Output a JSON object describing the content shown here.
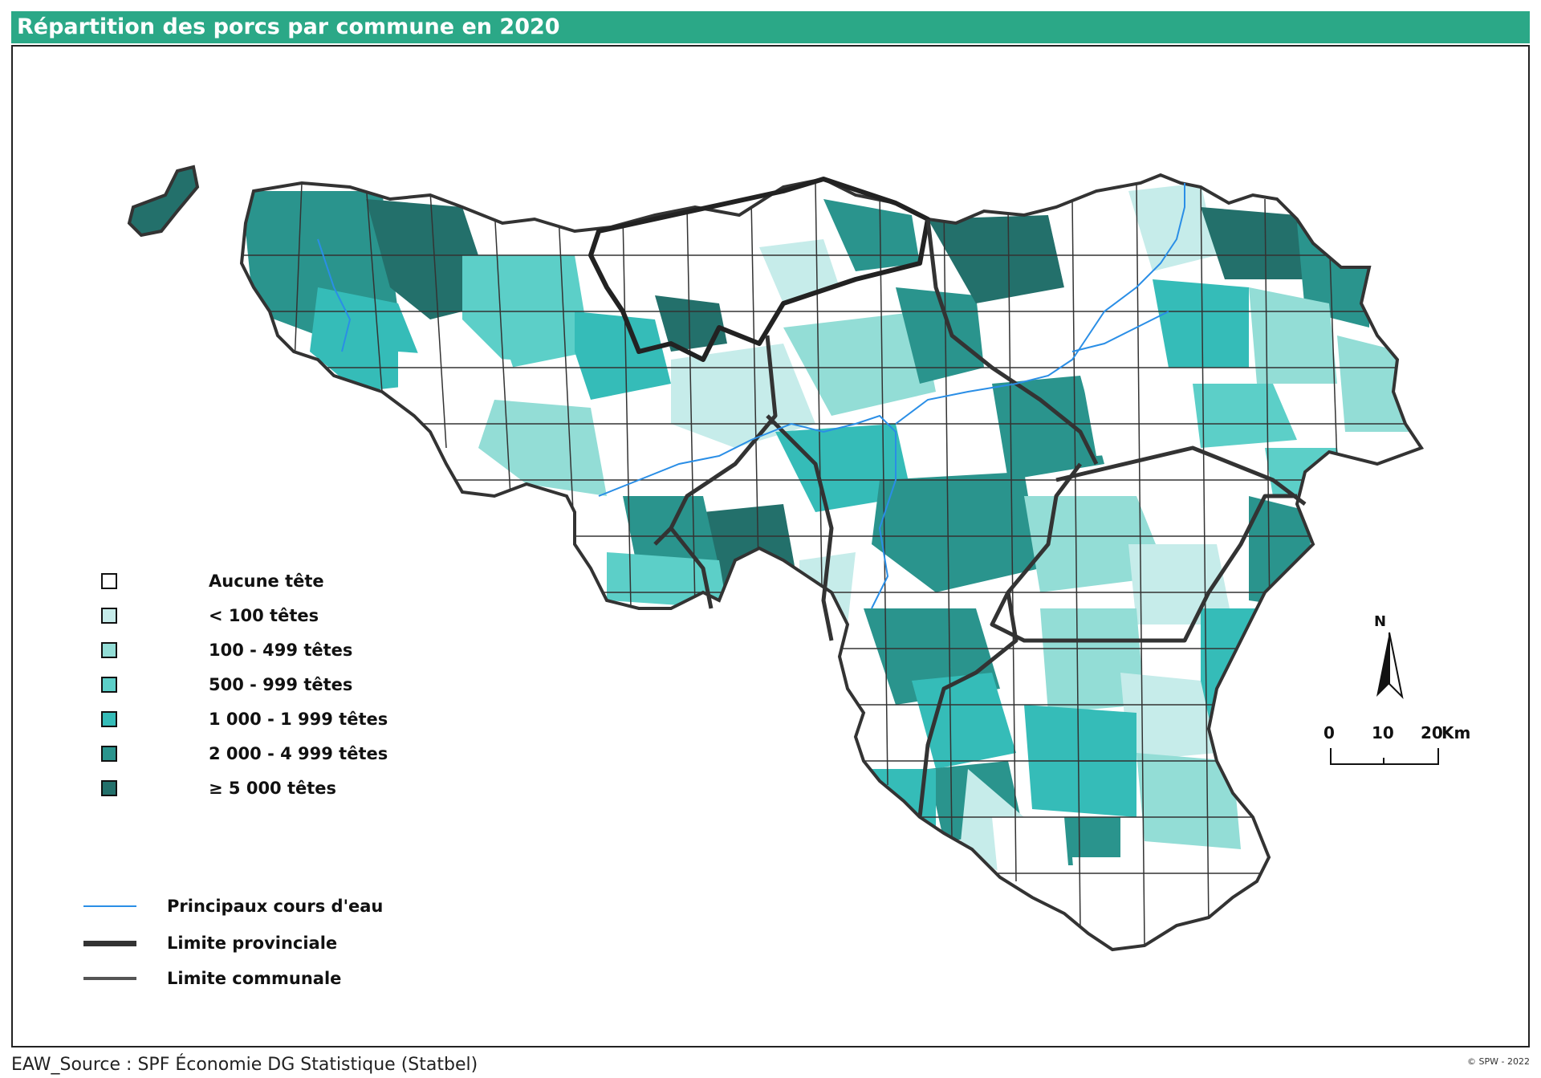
{
  "title": "Répartition des porcs par commune en 2020",
  "legend": {
    "classes": [
      {
        "label": "Aucune tête",
        "color": "#ffffff"
      },
      {
        "label": "< 100 têtes",
        "color": "#c6ecea"
      },
      {
        "label": "100 - 499 têtes",
        "color": "#93ddd6"
      },
      {
        "label": "500 - 999 têtes",
        "color": "#5ccfc8"
      },
      {
        "label": "1 000 - 1 999 têtes",
        "color": "#35bcb8"
      },
      {
        "label": "2 000 - 4 999 têtes",
        "color": "#2a948d"
      },
      {
        "label": "≥ 5 000 têtes",
        "color": "#23706b"
      }
    ],
    "lines": [
      {
        "label": "Principaux cours d'eau",
        "color": "#2a8ee6",
        "kind": "river"
      },
      {
        "label": "Limite provinciale",
        "color": "#333333",
        "kind": "province"
      },
      {
        "label": "Limite communale",
        "color": "#555555",
        "kind": "commune"
      }
    ]
  },
  "north_arrow": {
    "label": "N"
  },
  "scale_bar": {
    "ticks": [
      "0",
      "10",
      "20"
    ],
    "unit": "Km"
  },
  "source": "EAW_Source : SPF Économie DG Statistique (Statbel)",
  "credit": "© SPW - 2022"
}
